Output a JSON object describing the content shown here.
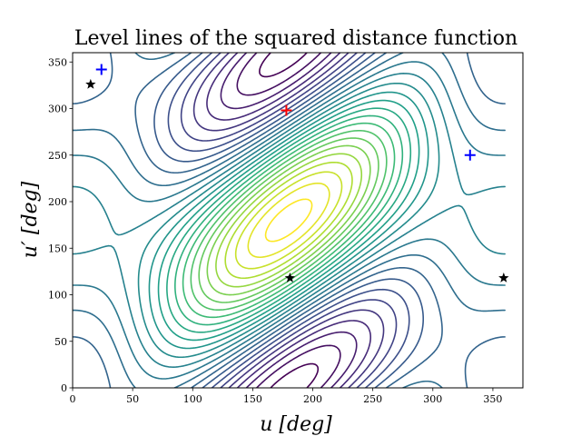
{
  "chart_data": {
    "type": "contour",
    "title": "Level lines of the squared distance function",
    "xlabel": "u [deg]",
    "ylabel": "u′ [deg]",
    "xlim": [
      0,
      375
    ],
    "ylim": [
      0,
      360
    ],
    "xticks": [
      "0",
      "50",
      "100",
      "150",
      "200",
      "250",
      "300",
      "350"
    ],
    "yticks": [
      "0",
      "50",
      "100",
      "150",
      "200",
      "250",
      "300",
      "350"
    ],
    "colormap": "viridis",
    "levels": 26,
    "grid": false,
    "markers": [
      {
        "kind": "plus",
        "color": "#ff0000",
        "x": 178,
        "y": 298
      },
      {
        "kind": "plus",
        "color": "#0000ff",
        "x": 24,
        "y": 342
      },
      {
        "kind": "plus",
        "color": "#0000ff",
        "x": 331,
        "y": 250
      },
      {
        "kind": "star",
        "color": "#000000",
        "x": 15,
        "y": 326
      },
      {
        "kind": "star",
        "color": "#000000",
        "x": 181,
        "y": 118
      },
      {
        "kind": "star",
        "color": "#000000",
        "x": 359,
        "y": 118
      }
    ],
    "colors": {
      "dark_purple": "#440154",
      "blue": "#3b528b",
      "teal": "#21918c",
      "green": "#5ec962",
      "yellow": "#fde725"
    }
  }
}
